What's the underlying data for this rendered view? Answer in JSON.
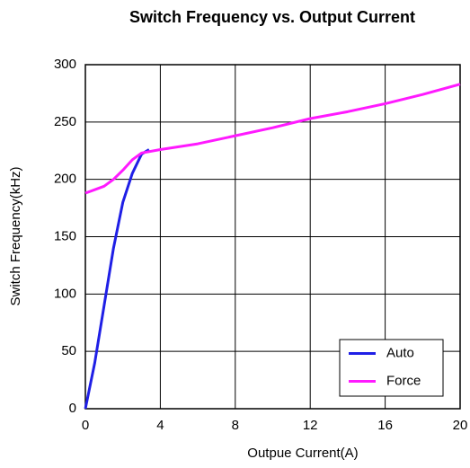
{
  "chart_data": {
    "type": "line",
    "title": "Switch Frequency vs. Output Current",
    "xlabel": "Outpue Current(A)",
    "ylabel": "Switch Frequency(kHz)",
    "xlim": [
      0,
      20
    ],
    "xticks": [
      0,
      4,
      8,
      12,
      16,
      20
    ],
    "ylim": [
      0,
      300
    ],
    "yticks": [
      0,
      50,
      100,
      150,
      200,
      250,
      300
    ],
    "grid": true,
    "legend": "lower right",
    "series": [
      {
        "name": "Auto",
        "color": "#1f1fe6",
        "x": [
          0,
          0.5,
          1,
          1.5,
          2,
          2.5,
          3,
          3.4
        ],
        "values": [
          0,
          40,
          90,
          140,
          180,
          205,
          222,
          226
        ]
      },
      {
        "name": "Force",
        "color": "#ff1aff",
        "x": [
          0,
          0.5,
          1,
          1.5,
          2,
          2.5,
          3,
          4,
          6,
          8,
          10,
          12,
          14,
          16,
          18,
          20
        ],
        "values": [
          188,
          191,
          194,
          200,
          208,
          217,
          223,
          226,
          231,
          238,
          245,
          253,
          259,
          266,
          274,
          283
        ]
      }
    ]
  }
}
